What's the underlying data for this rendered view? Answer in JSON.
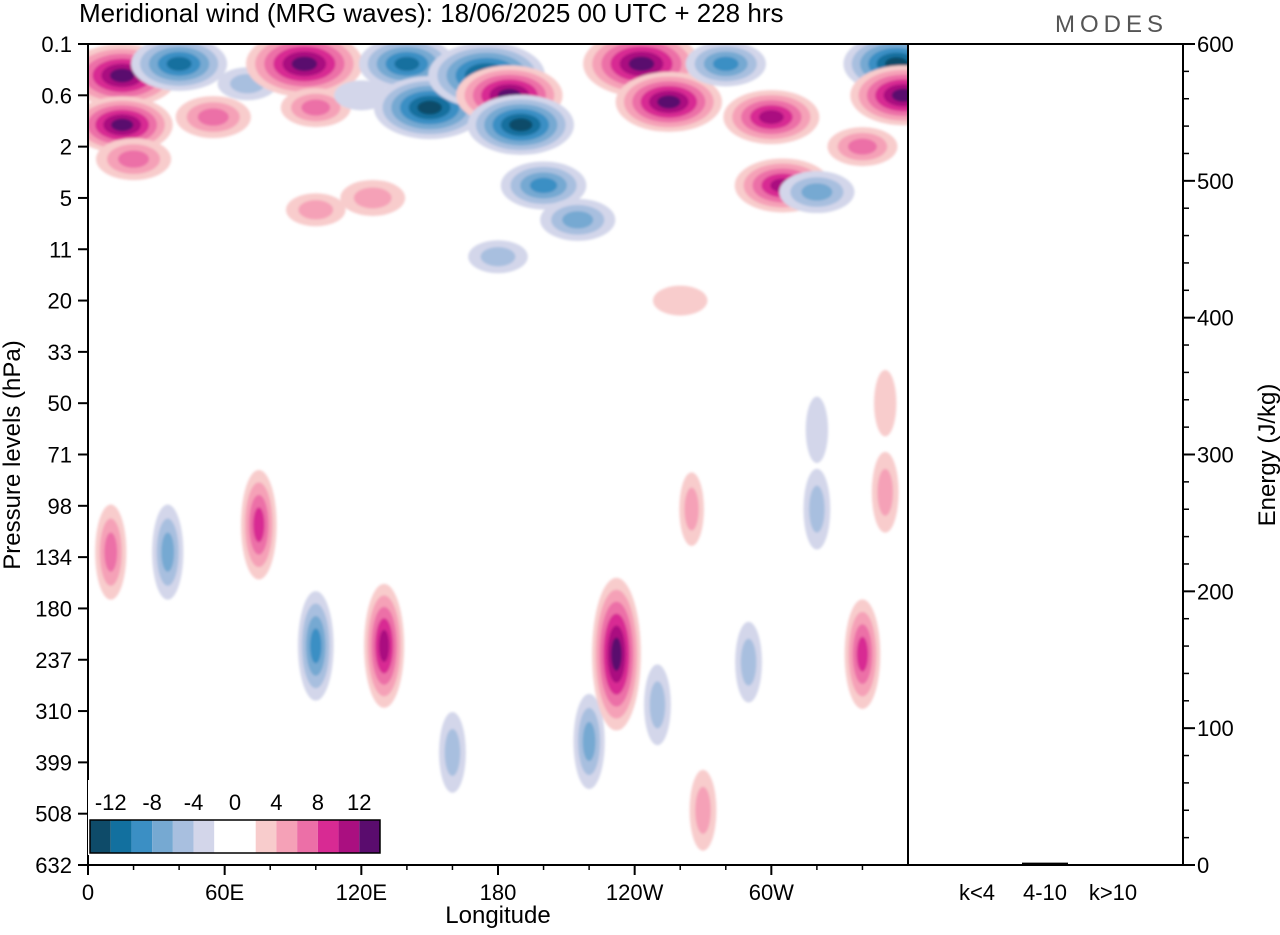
{
  "title": "Meridional wind (MRG waves):  18/06/2025  00 UTC  + 228 hrs",
  "logo": "MODES",
  "colors": {
    "neg6": "#0e4b69",
    "neg5": "#12709f",
    "neg4": "#3b8fc4",
    "neg3": "#76a9d2",
    "neg2": "#a8bfdf",
    "neg1": "#d3d6ea",
    "zero": "#ffffff",
    "pos1": "#f8cccc",
    "pos2": "#f5a1b7",
    "pos3": "#ec6fa7",
    "pos4": "#d82a93",
    "pos5": "#aa0f80",
    "pos6": "#5a0c6e"
  },
  "chart_data": [
    {
      "type": "heatmap",
      "title": "Meridional wind (MRG waves):  18/06/2025  00 UTC  + 228 hrs",
      "xlabel": "Longitude",
      "ylabel": "Pressure levels (hPa)",
      "x_ticks": [
        "0",
        "60E",
        "120E",
        "180",
        "120W",
        "60W"
      ],
      "y_ticks": [
        "0.1",
        "0.6",
        "2",
        "5",
        "11",
        "20",
        "33",
        "50",
        "71",
        "98",
        "134",
        "180",
        "237",
        "310",
        "399",
        "508",
        "632"
      ],
      "colorbar": {
        "labels": [
          "-12",
          "-8",
          "-4",
          "0",
          "4",
          "8",
          "12"
        ],
        "levels": [
          -14,
          -12,
          -10,
          -8,
          -6,
          -4,
          -2,
          2,
          4,
          6,
          8,
          10,
          12,
          14
        ]
      },
      "features": [
        {
          "lon": 15,
          "lev": 0.3,
          "value": 13
        },
        {
          "lon": 15,
          "lev": 1.2,
          "value": 11
        },
        {
          "lon": 20,
          "lev": 2.5,
          "value": 6
        },
        {
          "lon": 40,
          "lev": 0.2,
          "value": -10
        },
        {
          "lon": 55,
          "lev": 1.0,
          "value": 6
        },
        {
          "lon": 70,
          "lev": 0.4,
          "value": -3
        },
        {
          "lon": 95,
          "lev": 0.2,
          "value": 14
        },
        {
          "lon": 100,
          "lev": 0.8,
          "value": 5
        },
        {
          "lon": 120,
          "lev": 0.6,
          "value": -2
        },
        {
          "lon": 140,
          "lev": 0.2,
          "value": -10
        },
        {
          "lon": 150,
          "lev": 0.8,
          "value": -13
        },
        {
          "lon": 175,
          "lev": 0.3,
          "value": -14
        },
        {
          "lon": 185,
          "lev": 0.6,
          "value": 12
        },
        {
          "lon": 190,
          "lev": 1.2,
          "value": -12
        },
        {
          "lon": 200,
          "lev": 4.0,
          "value": -8
        },
        {
          "lon": 215,
          "lev": 7.0,
          "value": -6
        },
        {
          "lon": 180,
          "lev": 12.0,
          "value": -3
        },
        {
          "lon": 125,
          "lev": 5.0,
          "value": 4
        },
        {
          "lon": 100,
          "lev": 6.0,
          "value": 3
        },
        {
          "lon": 243,
          "lev": 0.2,
          "value": 14
        },
        {
          "lon": 255,
          "lev": 0.7,
          "value": 12
        },
        {
          "lon": 280,
          "lev": 0.2,
          "value": -7
        },
        {
          "lon": 300,
          "lev": 1.0,
          "value": 10
        },
        {
          "lon": 305,
          "lev": 4.0,
          "value": 10
        },
        {
          "lon": 320,
          "lev": 4.5,
          "value": -6
        },
        {
          "lon": 340,
          "lev": 2.0,
          "value": 5
        },
        {
          "lon": 355,
          "lev": 0.2,
          "value": -12
        },
        {
          "lon": 358,
          "lev": 0.6,
          "value": 12
        },
        {
          "lon": 260,
          "lev": 20.0,
          "value": 2
        },
        {
          "lon": 320,
          "lev": 60.0,
          "value": -2
        },
        {
          "lon": 350,
          "lev": 50.0,
          "value": 2
        },
        {
          "lon": 10,
          "lev": 130.0,
          "value": 6
        },
        {
          "lon": 35,
          "lev": 130.0,
          "value": -6
        },
        {
          "lon": 75,
          "lev": 110.0,
          "value": 8
        },
        {
          "lon": 100,
          "lev": 220.0,
          "value": -8
        },
        {
          "lon": 130,
          "lev": 220.0,
          "value": 10
        },
        {
          "lon": 160,
          "lev": 380.0,
          "value": -4
        },
        {
          "lon": 220,
          "lev": 360.0,
          "value": -6
        },
        {
          "lon": 232,
          "lev": 230.0,
          "value": 14
        },
        {
          "lon": 250,
          "lev": 300.0,
          "value": -4
        },
        {
          "lon": 265,
          "lev": 100.0,
          "value": 3
        },
        {
          "lon": 290,
          "lev": 240.0,
          "value": -4
        },
        {
          "lon": 320,
          "lev": 100.0,
          "value": -4
        },
        {
          "lon": 340,
          "lev": 230.0,
          "value": 8
        },
        {
          "lon": 350,
          "lev": 90.0,
          "value": 4
        },
        {
          "lon": 270,
          "lev": 500.0,
          "value": 4
        }
      ]
    },
    {
      "type": "bar",
      "ylabel": "Energy (J/kg)",
      "ylim": [
        0,
        600
      ],
      "y_ticks": [
        "0",
        "100",
        "200",
        "300",
        "400",
        "500",
        "600"
      ],
      "categories": [
        "k<4",
        "4-10",
        "k>10"
      ],
      "values": [
        0,
        1,
        0
      ]
    }
  ]
}
